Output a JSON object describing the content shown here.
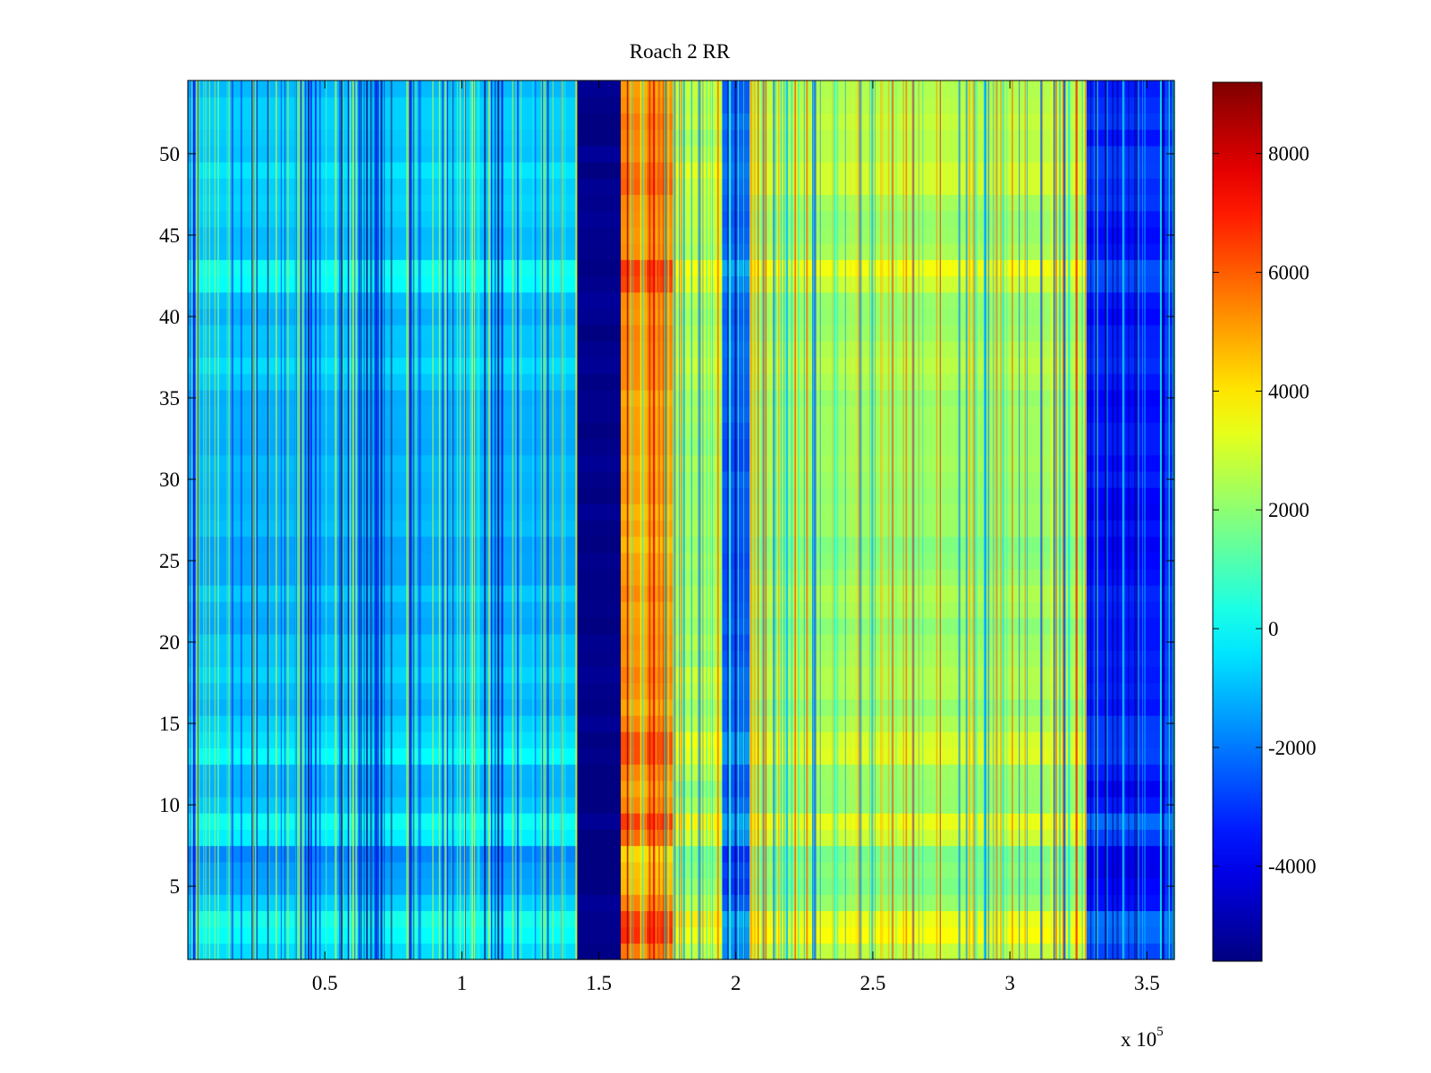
{
  "chart_data": {
    "type": "heatmap",
    "title": "Roach 2 RR",
    "xlabel": "",
    "ylabel": "",
    "x_exponent_label": "x 10",
    "x_exponent_power": "5",
    "xlim": [
      0,
      3.6
    ],
    "ylim": [
      0.5,
      54.5
    ],
    "x_ticks": [
      {
        "value": 0.5,
        "label": "0.5"
      },
      {
        "value": 1,
        "label": "1"
      },
      {
        "value": 1.5,
        "label": "1.5"
      },
      {
        "value": 2,
        "label": "2"
      },
      {
        "value": 2.5,
        "label": "2.5"
      },
      {
        "value": 3,
        "label": "3"
      },
      {
        "value": 3.5,
        "label": "3.5"
      }
    ],
    "y_ticks": [
      {
        "value": 5,
        "label": "5"
      },
      {
        "value": 10,
        "label": "10"
      },
      {
        "value": 15,
        "label": "15"
      },
      {
        "value": 20,
        "label": "20"
      },
      {
        "value": 25,
        "label": "25"
      },
      {
        "value": 30,
        "label": "30"
      },
      {
        "value": 35,
        "label": "35"
      },
      {
        "value": 40,
        "label": "40"
      },
      {
        "value": 45,
        "label": "45"
      },
      {
        "value": 50,
        "label": "50"
      }
    ],
    "colormap": "jet",
    "clim": [
      -5600,
      9200
    ],
    "colorbar_ticks": [
      {
        "value": -4000,
        "label": "-4000"
      },
      {
        "value": -2000,
        "label": "-2000"
      },
      {
        "value": 0,
        "label": "0"
      },
      {
        "value": 2000,
        "label": "2000"
      },
      {
        "value": 4000,
        "label": "4000"
      },
      {
        "value": 6000,
        "label": "6000"
      },
      {
        "value": 8000,
        "label": "8000"
      }
    ],
    "rows": 54,
    "column_bands": [
      {
        "x0": 0.0,
        "x1": 1.42,
        "base": -1200
      },
      {
        "x0": 1.42,
        "x1": 1.58,
        "base": -5500
      },
      {
        "x0": 1.58,
        "x1": 1.77,
        "base": 5000
      },
      {
        "x0": 1.77,
        "x1": 1.95,
        "base": 2400
      },
      {
        "x0": 1.95,
        "x1": 2.05,
        "base": -2600
      },
      {
        "x0": 2.05,
        "x1": 3.28,
        "base": 2100
      },
      {
        "x0": 3.28,
        "x1": 3.6,
        "base": -3600
      }
    ],
    "row_offsets": [
      {
        "row": 1,
        "offset": 1200
      },
      {
        "row": 2,
        "offset": 2600
      },
      {
        "row": 3,
        "offset": 2800
      },
      {
        "row": 4,
        "offset": 500
      },
      {
        "row": 5,
        "offset": -500
      },
      {
        "row": 6,
        "offset": -700
      },
      {
        "row": 7,
        "offset": -900
      },
      {
        "row": 8,
        "offset": 1500
      },
      {
        "row": 9,
        "offset": 2400
      },
      {
        "row": 10,
        "offset": 400
      },
      {
        "row": 11,
        "offset": -200
      },
      {
        "row": 12,
        "offset": 300
      },
      {
        "row": 13,
        "offset": 2000
      },
      {
        "row": 14,
        "offset": 1800
      },
      {
        "row": 15,
        "offset": 900
      },
      {
        "row": 16,
        "offset": 300
      },
      {
        "row": 17,
        "offset": 700
      },
      {
        "row": 18,
        "offset": 800
      },
      {
        "row": 19,
        "offset": 200
      },
      {
        "row": 20,
        "offset": 300
      },
      {
        "row": 21,
        "offset": 100
      },
      {
        "row": 22,
        "offset": 0
      },
      {
        "row": 23,
        "offset": 500
      },
      {
        "row": 24,
        "offset": -200
      },
      {
        "row": 25,
        "offset": -100
      },
      {
        "row": 26,
        "offset": -300
      },
      {
        "row": 27,
        "offset": 0
      },
      {
        "row": 28,
        "offset": -200
      },
      {
        "row": 29,
        "offset": 100
      },
      {
        "row": 30,
        "offset": 200
      },
      {
        "row": 31,
        "offset": 0
      },
      {
        "row": 32,
        "offset": 100
      },
      {
        "row": 33,
        "offset": 300
      },
      {
        "row": 34,
        "offset": 200
      },
      {
        "row": 35,
        "offset": 0
      },
      {
        "row": 36,
        "offset": 700
      },
      {
        "row": 37,
        "offset": 900
      },
      {
        "row": 38,
        "offset": 600
      },
      {
        "row": 39,
        "offset": 400
      },
      {
        "row": 40,
        "offset": 200
      },
      {
        "row": 41,
        "offset": 500
      },
      {
        "row": 42,
        "offset": 2000
      },
      {
        "row": 43,
        "offset": 2400
      },
      {
        "row": 44,
        "offset": 600
      },
      {
        "row": 45,
        "offset": 300
      },
      {
        "row": 46,
        "offset": 500
      },
      {
        "row": 47,
        "offset": 900
      },
      {
        "row": 48,
        "offset": 1300
      },
      {
        "row": 49,
        "offset": 1500
      },
      {
        "row": 50,
        "offset": 1000
      },
      {
        "row": 51,
        "offset": 600
      },
      {
        "row": 52,
        "offset": 1100
      },
      {
        "row": 53,
        "offset": 800
      },
      {
        "row": 54,
        "offset": 500
      }
    ]
  }
}
